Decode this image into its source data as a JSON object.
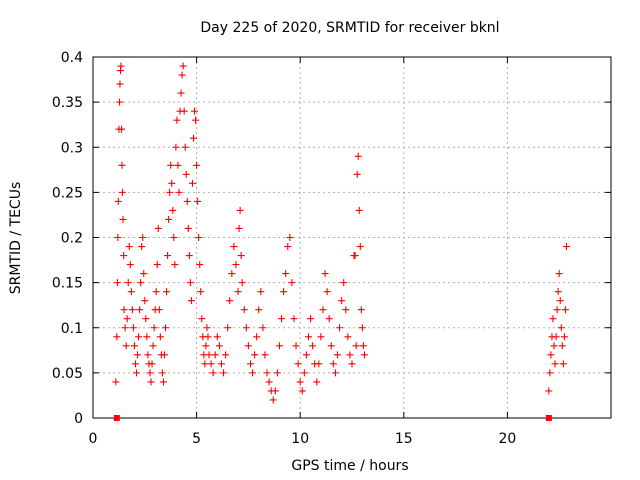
{
  "chart_data": {
    "type": "scatter",
    "title": "Day 225 of 2020, SRMTID for receiver bknl",
    "xlabel": "GPS time / hours",
    "ylabel": "SRMTID / TECUs",
    "xlim": [
      0,
      25
    ],
    "ylim": [
      0,
      0.4
    ],
    "xticks": [
      "0",
      "5",
      "10",
      "15",
      "20"
    ],
    "yticks": [
      "0",
      "0.05",
      "0.1",
      "0.15",
      "0.2",
      "0.25",
      "0.3",
      "0.35",
      "0.4"
    ],
    "grid": true,
    "marker": "+",
    "color": "#ff0000",
    "series": [
      {
        "values": [
          [
            1.1,
            0.04
          ],
          [
            1.15,
            0.09
          ],
          [
            1.18,
            0.15
          ],
          [
            1.2,
            0.2
          ],
          [
            1.22,
            0.24
          ],
          [
            1.25,
            0.32
          ],
          [
            1.28,
            0.35
          ],
          [
            1.3,
            0.37
          ],
          [
            1.33,
            0.385
          ],
          [
            1.35,
            0.39
          ],
          [
            1.38,
            0.32
          ],
          [
            1.4,
            0.28
          ],
          [
            1.42,
            0.25
          ],
          [
            1.45,
            0.22
          ],
          [
            1.48,
            0.18
          ],
          [
            1.5,
            0.12
          ],
          [
            1.55,
            0.1
          ],
          [
            1.6,
            0.08
          ],
          [
            1.65,
            0.11
          ],
          [
            1.7,
            0.15
          ],
          [
            1.75,
            0.19
          ],
          [
            1.8,
            0.17
          ],
          [
            1.85,
            0.14
          ],
          [
            1.9,
            0.12
          ],
          [
            1.95,
            0.1
          ],
          [
            2.0,
            0.08
          ],
          [
            2.05,
            0.06
          ],
          [
            2.1,
            0.05
          ],
          [
            2.15,
            0.07
          ],
          [
            2.2,
            0.09
          ],
          [
            2.25,
            0.12
          ],
          [
            2.3,
            0.15
          ],
          [
            2.35,
            0.19
          ],
          [
            2.4,
            0.2
          ],
          [
            2.45,
            0.16
          ],
          [
            2.5,
            0.13
          ],
          [
            2.55,
            0.11
          ],
          [
            2.6,
            0.09
          ],
          [
            2.65,
            0.07
          ],
          [
            2.7,
            0.06
          ],
          [
            2.75,
            0.05
          ],
          [
            2.8,
            0.04
          ],
          [
            2.85,
            0.06
          ],
          [
            2.9,
            0.08
          ],
          [
            2.95,
            0.1
          ],
          [
            3.0,
            0.12
          ],
          [
            3.05,
            0.14
          ],
          [
            3.1,
            0.17
          ],
          [
            3.15,
            0.21
          ],
          [
            3.2,
            0.12
          ],
          [
            3.25,
            0.09
          ],
          [
            3.3,
            0.07
          ],
          [
            3.35,
            0.05
          ],
          [
            3.4,
            0.04
          ],
          [
            3.45,
            0.07
          ],
          [
            3.5,
            0.1
          ],
          [
            3.55,
            0.14
          ],
          [
            3.6,
            0.18
          ],
          [
            3.65,
            0.22
          ],
          [
            3.7,
            0.25
          ],
          [
            3.75,
            0.28
          ],
          [
            3.8,
            0.26
          ],
          [
            3.85,
            0.23
          ],
          [
            3.9,
            0.2
          ],
          [
            3.95,
            0.17
          ],
          [
            4.0,
            0.3
          ],
          [
            4.05,
            0.33
          ],
          [
            4.1,
            0.28
          ],
          [
            4.15,
            0.25
          ],
          [
            4.2,
            0.34
          ],
          [
            4.25,
            0.36
          ],
          [
            4.3,
            0.38
          ],
          [
            4.35,
            0.39
          ],
          [
            4.4,
            0.34
          ],
          [
            4.45,
            0.3
          ],
          [
            4.5,
            0.27
          ],
          [
            4.55,
            0.24
          ],
          [
            4.6,
            0.21
          ],
          [
            4.65,
            0.18
          ],
          [
            4.7,
            0.15
          ],
          [
            4.75,
            0.13
          ],
          [
            4.8,
            0.26
          ],
          [
            4.85,
            0.31
          ],
          [
            4.9,
            0.34
          ],
          [
            4.95,
            0.33
          ],
          [
            5.0,
            0.28
          ],
          [
            5.05,
            0.24
          ],
          [
            5.1,
            0.2
          ],
          [
            5.15,
            0.17
          ],
          [
            5.2,
            0.14
          ],
          [
            5.25,
            0.11
          ],
          [
            5.3,
            0.09
          ],
          [
            5.35,
            0.07
          ],
          [
            5.4,
            0.06
          ],
          [
            5.45,
            0.08
          ],
          [
            5.5,
            0.1
          ],
          [
            5.55,
            0.09
          ],
          [
            5.6,
            0.07
          ],
          [
            5.7,
            0.06
          ],
          [
            5.8,
            0.05
          ],
          [
            5.9,
            0.07
          ],
          [
            6.0,
            0.09
          ],
          [
            6.1,
            0.08
          ],
          [
            6.2,
            0.06
          ],
          [
            6.3,
            0.05
          ],
          [
            6.4,
            0.07
          ],
          [
            6.5,
            0.1
          ],
          [
            6.6,
            0.13
          ],
          [
            6.7,
            0.16
          ],
          [
            6.8,
            0.19
          ],
          [
            6.9,
            0.17
          ],
          [
            7.0,
            0.14
          ],
          [
            7.05,
            0.21
          ],
          [
            7.1,
            0.23
          ],
          [
            7.15,
            0.18
          ],
          [
            7.2,
            0.15
          ],
          [
            7.3,
            0.12
          ],
          [
            7.4,
            0.1
          ],
          [
            7.5,
            0.08
          ],
          [
            7.6,
            0.06
          ],
          [
            7.7,
            0.05
          ],
          [
            7.8,
            0.07
          ],
          [
            7.9,
            0.09
          ],
          [
            8.0,
            0.12
          ],
          [
            8.1,
            0.14
          ],
          [
            8.2,
            0.1
          ],
          [
            8.3,
            0.07
          ],
          [
            8.4,
            0.05
          ],
          [
            8.5,
            0.04
          ],
          [
            8.6,
            0.03
          ],
          [
            8.7,
            0.02
          ],
          [
            8.8,
            0.03
          ],
          [
            8.9,
            0.05
          ],
          [
            9.0,
            0.08
          ],
          [
            9.1,
            0.11
          ],
          [
            9.2,
            0.14
          ],
          [
            9.3,
            0.16
          ],
          [
            9.4,
            0.19
          ],
          [
            9.5,
            0.2
          ],
          [
            9.6,
            0.15
          ],
          [
            9.7,
            0.11
          ],
          [
            9.8,
            0.08
          ],
          [
            9.9,
            0.06
          ],
          [
            10.0,
            0.04
          ],
          [
            10.1,
            0.03
          ],
          [
            10.2,
            0.05
          ],
          [
            10.3,
            0.07
          ],
          [
            10.4,
            0.09
          ],
          [
            10.5,
            0.11
          ],
          [
            10.6,
            0.08
          ],
          [
            10.7,
            0.06
          ],
          [
            10.8,
            0.04
          ],
          [
            10.9,
            0.06
          ],
          [
            11.0,
            0.09
          ],
          [
            11.1,
            0.12
          ],
          [
            11.2,
            0.16
          ],
          [
            11.3,
            0.14
          ],
          [
            11.4,
            0.11
          ],
          [
            11.5,
            0.08
          ],
          [
            11.6,
            0.06
          ],
          [
            11.7,
            0.05
          ],
          [
            11.8,
            0.07
          ],
          [
            11.9,
            0.1
          ],
          [
            12.0,
            0.13
          ],
          [
            12.1,
            0.15
          ],
          [
            12.2,
            0.12
          ],
          [
            12.3,
            0.09
          ],
          [
            12.4,
            0.07
          ],
          [
            12.5,
            0.06
          ],
          [
            12.6,
            0.18
          ],
          [
            12.65,
            0.18
          ],
          [
            12.7,
            0.08
          ],
          [
            12.75,
            0.27
          ],
          [
            12.8,
            0.29
          ],
          [
            12.85,
            0.23
          ],
          [
            12.9,
            0.19
          ],
          [
            12.95,
            0.12
          ],
          [
            13.0,
            0.1
          ],
          [
            13.05,
            0.08
          ],
          [
            13.1,
            0.07
          ],
          [
            22.0,
            0.03
          ],
          [
            22.05,
            0.05
          ],
          [
            22.1,
            0.07
          ],
          [
            22.15,
            0.09
          ],
          [
            22.2,
            0.11
          ],
          [
            22.25,
            0.08
          ],
          [
            22.3,
            0.06
          ],
          [
            22.35,
            0.09
          ],
          [
            22.4,
            0.12
          ],
          [
            22.45,
            0.14
          ],
          [
            22.5,
            0.16
          ],
          [
            22.55,
            0.13
          ],
          [
            22.6,
            0.1
          ],
          [
            22.65,
            0.08
          ],
          [
            22.7,
            0.06
          ],
          [
            22.75,
            0.09
          ],
          [
            22.8,
            0.12
          ],
          [
            22.85,
            0.19
          ]
        ]
      },
      {
        "name": "",
        "marker": "square",
        "values": [
          [
            1.15,
            0.0
          ],
          [
            22.0,
            0.0
          ]
        ]
      }
    ]
  }
}
